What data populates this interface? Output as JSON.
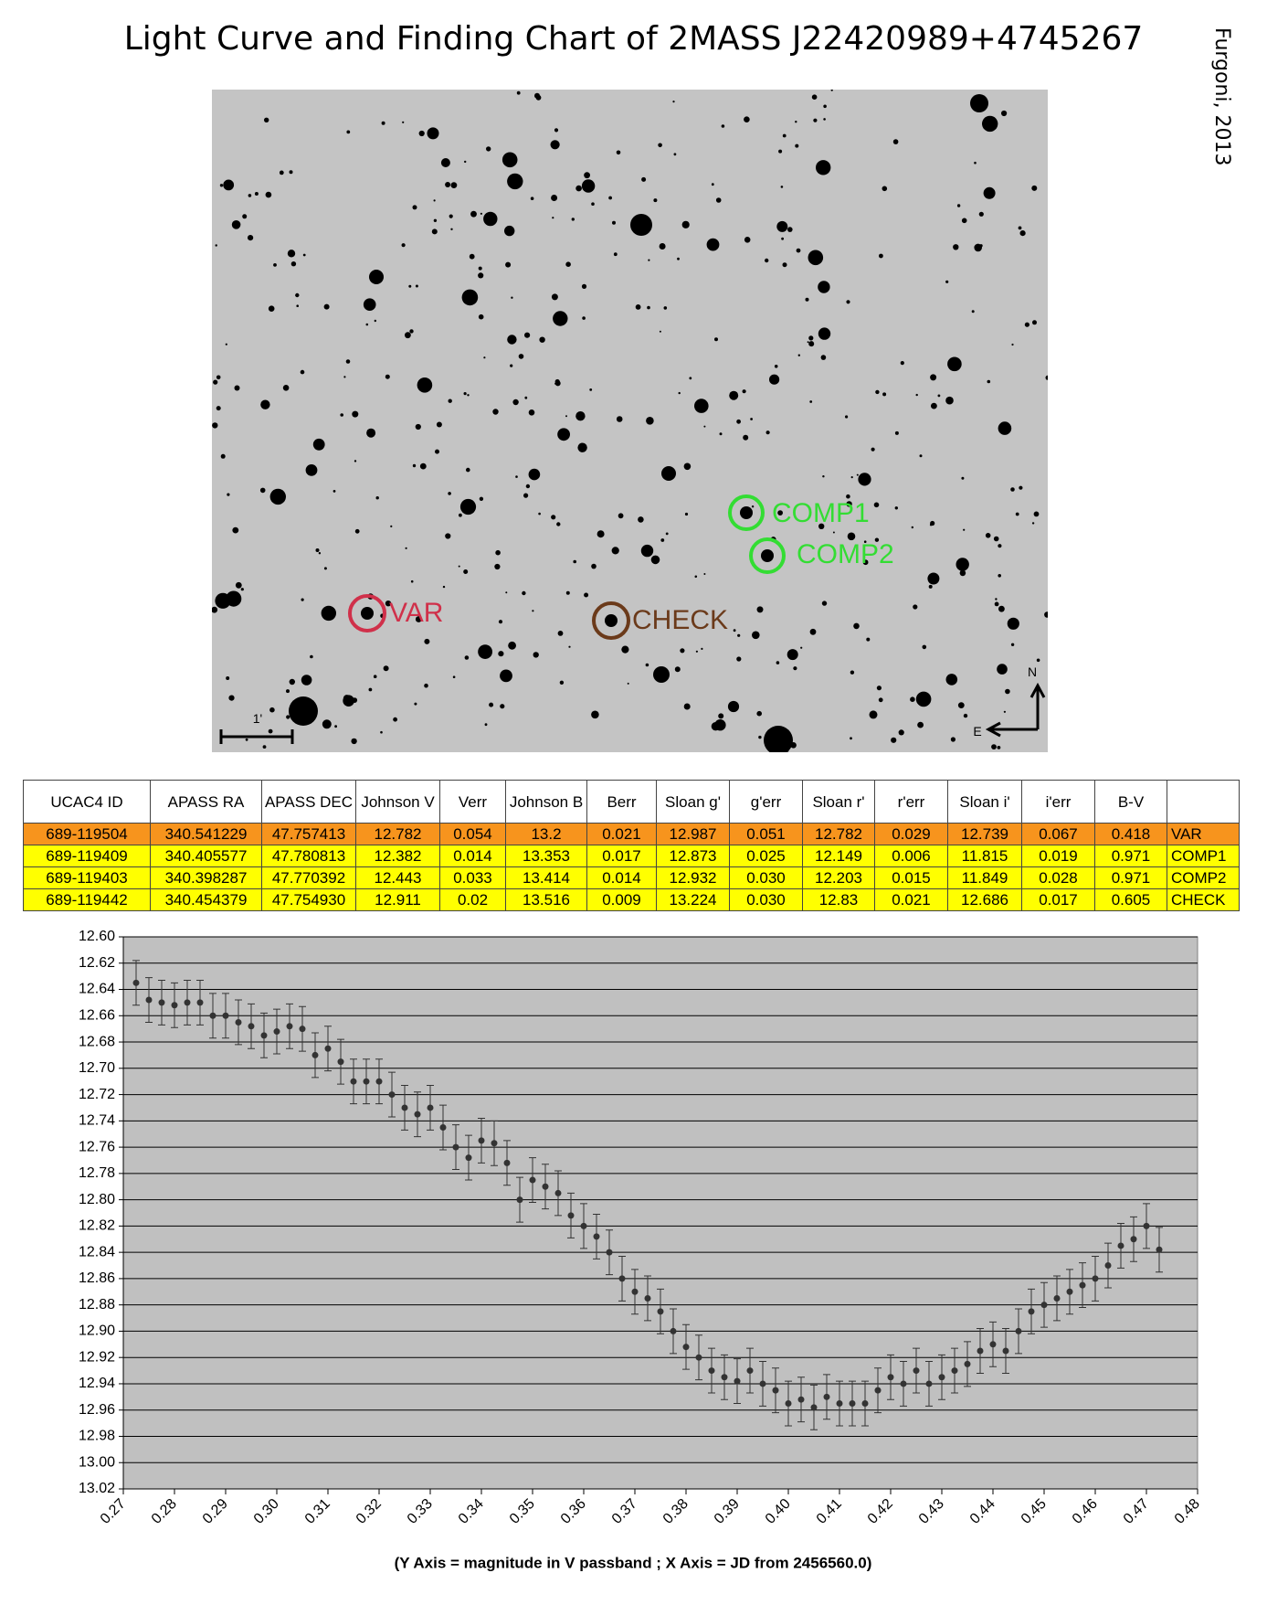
{
  "title": "Light Curve and Finding Chart of 2MASS J22420989+4745267",
  "credit": "Furgoni, 2013",
  "finder": {
    "labels": [
      "COMP1",
      "COMP2",
      "VAR",
      "CHECK"
    ],
    "north": "N",
    "east": "E",
    "scale": "1'"
  },
  "table": {
    "header": [
      "UCAC4 ID",
      "APASS RA",
      "APASS DEC",
      "Johnson V",
      "Verr",
      "Johnson B",
      "Berr",
      "Sloan g'",
      "g'err",
      "Sloan r'",
      "r'err",
      "Sloan i'",
      "i'err",
      "B-V"
    ],
    "rows": [
      [
        "689-119504",
        "340.541229",
        "47.757413",
        "12.782",
        "0.054",
        "13.2",
        "0.021",
        "12.987",
        "0.051",
        "12.782",
        "0.029",
        "12.739",
        "0.067",
        "0.418",
        "VAR"
      ],
      [
        "689-119409",
        "340.405577",
        "47.780813",
        "12.382",
        "0.014",
        "13.353",
        "0.017",
        "12.873",
        "0.025",
        "12.149",
        "0.006",
        "11.815",
        "0.019",
        "0.971",
        "COMP1"
      ],
      [
        "689-119403",
        "340.398287",
        "47.770392",
        "12.443",
        "0.033",
        "13.414",
        "0.014",
        "12.932",
        "0.030",
        "12.203",
        "0.015",
        "11.849",
        "0.028",
        "0.971",
        "COMP2"
      ],
      [
        "689-119442",
        "340.454379",
        "47.754930",
        "12.911",
        "0.02",
        "13.516",
        "0.009",
        "13.224",
        "0.030",
        "12.83",
        "0.021",
        "12.686",
        "0.017",
        "0.605",
        "CHECK"
      ]
    ]
  },
  "chart_data": {
    "type": "scatter",
    "x_label": "(Y Axis = magnitude in V passband ; X Axis = JD from 2456560.0)",
    "xlim": [
      0.27,
      0.48
    ],
    "xticks": [
      0.27,
      0.28,
      0.29,
      {
        "value": 0.3,
        "label": "0.30"
      },
      0.31,
      0.32,
      0.33,
      0.34,
      0.35,
      0.36,
      0.37,
      0.38,
      0.39,
      {
        "value": 0.4,
        "label": "0.40"
      },
      0.41,
      0.42,
      0.43,
      0.44,
      0.45,
      0.46,
      0.47,
      0.48
    ],
    "ylim": [
      12.6,
      13.02
    ],
    "y_inverted": true,
    "yticks": [
      {
        "value": 12.6,
        "label": "12.60"
      },
      12.62,
      12.64,
      12.66,
      12.68,
      {
        "value": 12.7,
        "label": "12.70"
      },
      12.72,
      12.74,
      12.76,
      12.78,
      {
        "value": 12.8,
        "label": "12.80"
      },
      12.82,
      12.84,
      12.86,
      12.88,
      {
        "value": 12.9,
        "label": "12.90"
      },
      12.92,
      12.94,
      12.96,
      12.98,
      {
        "value": 13.0,
        "label": "13.00"
      },
      13.02
    ],
    "grid": true,
    "yerr": 0.017,
    "series": [
      {
        "color": "#333333",
        "x": [
          0.2725,
          0.275,
          0.2775,
          0.28,
          0.2825,
          0.285,
          0.2875,
          0.29,
          0.2925,
          0.295,
          0.2975,
          0.3,
          0.3025,
          0.305,
          0.3075,
          0.31,
          0.3125,
          0.315,
          0.3175,
          0.32,
          0.3225,
          0.325,
          0.3275,
          0.33,
          0.3325,
          0.335,
          0.3375,
          0.34,
          0.3425,
          0.345,
          0.3475,
          0.35,
          0.3525,
          0.355,
          0.3575,
          0.36,
          0.3625,
          0.365,
          0.3675,
          0.37,
          0.3725,
          0.375,
          0.3775,
          0.38,
          0.3825,
          0.385,
          0.3875,
          0.39,
          0.3925,
          0.395,
          0.3975,
          0.4,
          0.4025,
          0.405,
          0.4075,
          0.41,
          0.4125,
          0.415,
          0.4175,
          0.42,
          0.4225,
          0.425,
          0.4275,
          0.43,
          0.4325,
          0.435,
          0.4375,
          0.44,
          0.4425,
          0.445,
          0.4475,
          0.45,
          0.4525,
          0.455,
          0.4575,
          0.46,
          0.4625,
          0.465,
          0.4675,
          0.47,
          0.4725
        ],
        "values": [
          12.635,
          12.648,
          12.65,
          12.652,
          12.65,
          12.65,
          12.66,
          12.66,
          12.665,
          12.668,
          12.675,
          12.672,
          12.668,
          12.67,
          12.69,
          12.685,
          12.695,
          12.71,
          12.71,
          12.71,
          12.72,
          12.73,
          12.735,
          12.73,
          12.745,
          12.76,
          12.768,
          12.755,
          12.757,
          12.772,
          12.8,
          12.785,
          12.79,
          12.795,
          12.812,
          12.82,
          12.828,
          12.84,
          12.86,
          12.87,
          12.875,
          12.885,
          12.9,
          12.912,
          12.92,
          12.93,
          12.935,
          12.938,
          12.93,
          12.94,
          12.945,
          12.955,
          12.952,
          12.958,
          12.95,
          12.955,
          12.955,
          12.955,
          12.945,
          12.935,
          12.94,
          12.93,
          12.94,
          12.935,
          12.93,
          12.925,
          12.915,
          12.91,
          12.915,
          12.9,
          12.885,
          12.88,
          12.875,
          12.87,
          12.865,
          12.86,
          12.85,
          12.835,
          12.83,
          12.82,
          12.838
        ]
      }
    ]
  }
}
